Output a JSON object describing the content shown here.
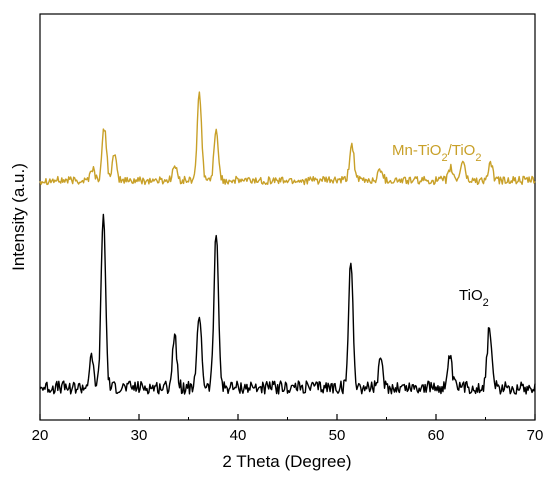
{
  "chart_data": {
    "type": "line",
    "title": "",
    "xlabel": "2 Theta (Degree)",
    "ylabel": "Intensity (a.u.)",
    "xlim": [
      20,
      70
    ],
    "ylim": [
      0,
      100
    ],
    "x_ticks": [
      "20",
      "30",
      "40",
      "50",
      "60",
      "70"
    ],
    "y_ticks_labeled": false,
    "grid": false,
    "legend": "inline labels",
    "series": [
      {
        "name": "Mn-TiO2/TiO2",
        "label_base": "Mn-TiO",
        "label_sub1": "2",
        "label_mid": "/TiO",
        "label_sub2": "2",
        "color": "#c8a028",
        "baseline": 59,
        "noise": 1.0,
        "peaks": [
          {
            "x": 25.3,
            "h": 3.0
          },
          {
            "x": 26.5,
            "h": 13.0
          },
          {
            "x": 27.5,
            "h": 6.0
          },
          {
            "x": 33.6,
            "h": 3.5
          },
          {
            "x": 36.1,
            "h": 21.0
          },
          {
            "x": 37.8,
            "h": 12.0
          },
          {
            "x": 51.5,
            "h": 9.0
          },
          {
            "x": 54.4,
            "h": 3.0
          },
          {
            "x": 61.5,
            "h": 3.0
          },
          {
            "x": 62.7,
            "h": 5.0
          },
          {
            "x": 65.5,
            "h": 4.0
          }
        ]
      },
      {
        "name": "TiO2",
        "label_base": "TiO",
        "label_sub1": "2",
        "color": "#000000",
        "baseline": 8,
        "noise": 1.6,
        "peaks": [
          {
            "x": 25.2,
            "h": 7.0
          },
          {
            "x": 26.4,
            "h": 43.0
          },
          {
            "x": 33.6,
            "h": 13.0
          },
          {
            "x": 36.1,
            "h": 18.0
          },
          {
            "x": 37.8,
            "h": 39.0
          },
          {
            "x": 51.4,
            "h": 31.0
          },
          {
            "x": 54.4,
            "h": 6.0
          },
          {
            "x": 61.4,
            "h": 7.0
          },
          {
            "x": 65.4,
            "h": 15.0
          }
        ]
      }
    ]
  }
}
